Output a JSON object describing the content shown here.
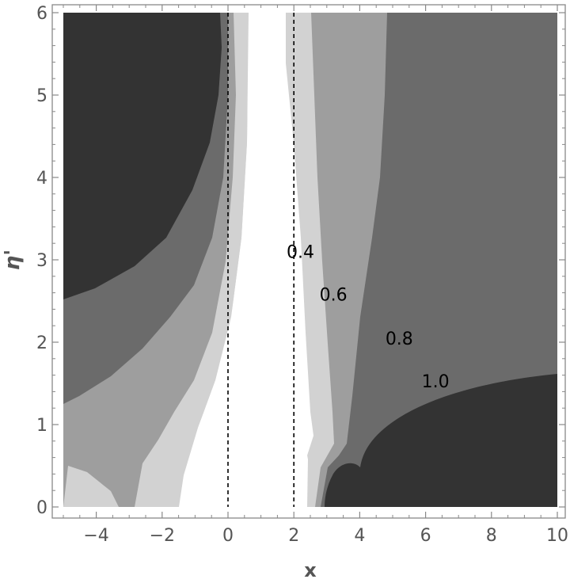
{
  "chart_data": {
    "type": "contour",
    "title": "",
    "xlabel": "x",
    "ylabel": "η'",
    "xlim": [
      -5,
      10
    ],
    "ylim": [
      0,
      6
    ],
    "x_ticks": [
      {
        "value": -4,
        "label": "−4"
      },
      {
        "value": -2,
        "label": "−2"
      },
      {
        "value": 0,
        "label": "0"
      },
      {
        "value": 2,
        "label": "2"
      },
      {
        "value": 4,
        "label": "4"
      },
      {
        "value": 6,
        "label": "6"
      },
      {
        "value": 8,
        "label": "8"
      },
      {
        "value": 10,
        "label": "10"
      }
    ],
    "y_ticks": [
      {
        "value": 0,
        "label": "0"
      },
      {
        "value": 1,
        "label": "1"
      },
      {
        "value": 2,
        "label": "2"
      },
      {
        "value": 3,
        "label": "3"
      },
      {
        "value": 4,
        "label": "4"
      },
      {
        "value": 5,
        "label": "5"
      },
      {
        "value": 6,
        "label": "6"
      }
    ],
    "reference_lines": [
      {
        "orientation": "vertical",
        "x": 0,
        "style": "dashed"
      },
      {
        "orientation": "vertical",
        "x": 2,
        "style": "dashed"
      }
    ],
    "contour_labels": [
      {
        "text": "0.4",
        "x": 2.2,
        "y": 3.1
      },
      {
        "text": "0.6",
        "x": 3.2,
        "y": 2.58
      },
      {
        "text": "0.8",
        "x": 5.2,
        "y": 2.05
      },
      {
        "text": "1.0",
        "x": 6.3,
        "y": 1.53
      }
    ],
    "levels": [
      {
        "level": 0,
        "color": "#ffffff"
      },
      {
        "level": 1,
        "color": "#d2d2d2"
      },
      {
        "level": 2,
        "color": "#9e9e9e"
      },
      {
        "level": 3,
        "color": "#6b6b6b"
      },
      {
        "level": 4,
        "color": "#333333"
      }
    ],
    "regions": [
      {
        "level": 1,
        "points": [
          [
            -5,
            0
          ],
          [
            -5,
            6
          ],
          [
            0.6,
            6
          ],
          [
            0.75,
            5
          ],
          [
            0.9,
            4
          ],
          [
            1.1,
            3
          ],
          [
            1.3,
            2
          ],
          [
            1.7,
            1.3
          ],
          [
            2.3,
            0.75
          ],
          [
            2.5,
            0.35
          ],
          [
            2.6,
            0
          ],
          [
            2.6,
            6
          ],
          [
            1.75,
            6
          ],
          [
            1.8,
            4
          ],
          [
            1.95,
            3
          ],
          [
            2.15,
            2
          ],
          [
            2.35,
            1.2
          ],
          [
            2.55,
            0
          ],
          [
            -1.6,
            0
          ],
          [
            -1.55,
            0.4
          ],
          [
            -1.3,
            0.9
          ],
          [
            -0.8,
            1.5
          ],
          [
            -0.3,
            2.5
          ],
          [
            0,
            3.5
          ],
          [
            0.05,
            4.5
          ],
          [
            0.05,
            6
          ],
          [
            -5,
            6
          ]
        ]
      },
      {
        "level": 2,
        "points": [
          [
            -5,
            0
          ],
          [
            -5,
            6
          ],
          [
            0.1,
            6
          ],
          [
            0.05,
            4.5
          ],
          [
            -0.2,
            3
          ],
          [
            -0.5,
            2.2
          ],
          [
            -0.9,
            1.5
          ],
          [
            -1.3,
            1.1
          ],
          [
            -1.7,
            0.8
          ],
          [
            -1.9,
            0.4
          ],
          [
            -2.4,
            0
          ],
          [
            2.65,
            0
          ],
          [
            2.8,
            0.55
          ],
          [
            3.1,
            0.8
          ],
          [
            3.6,
            0.65
          ],
          [
            3.7,
            1.6
          ],
          [
            3.8,
            2.5
          ],
          [
            3.5,
            3.5
          ],
          [
            3.0,
            4.5
          ],
          [
            2.65,
            6
          ],
          [
            -5,
            6
          ]
        ]
      },
      {
        "level": 3,
        "points": [
          [
            -5,
            0
          ],
          [
            -5,
            6
          ],
          [
            -0.5,
            6
          ],
          [
            -0.4,
            5
          ],
          [
            -0.75,
            4
          ],
          [
            -1.3,
            3.2
          ],
          [
            -2.1,
            2.5
          ],
          [
            -3.2,
            1.6
          ],
          [
            -4.2,
            1.2
          ],
          [
            -5,
            1.0
          ],
          [
            -5,
            0
          ]
        ]
      },
      {
        "level": 4,
        "points": [
          [
            -5,
            2.55
          ],
          [
            -5,
            6
          ],
          [
            -1.1,
            6
          ],
          [
            -1.1,
            5.5
          ],
          [
            -1.3,
            4.8
          ],
          [
            -1.6,
            4.2
          ],
          [
            -2.2,
            3.6
          ],
          [
            -3.2,
            3.0
          ],
          [
            -4.2,
            2.65
          ],
          [
            -5,
            2.55
          ]
        ]
      }
    ]
  }
}
